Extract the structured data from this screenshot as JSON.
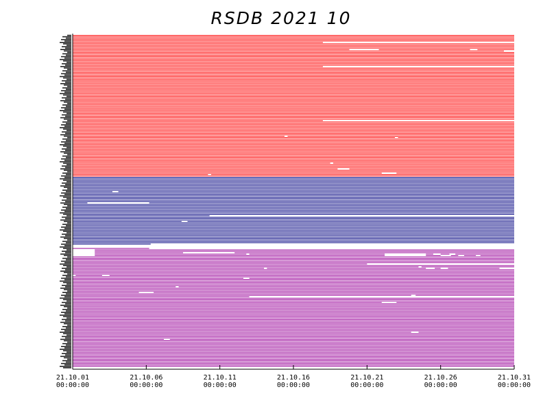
{
  "chart_data": {
    "type": "availability_timeline",
    "title": "RSDB  2021  10",
    "x_start": "21.10.01 00:00:00",
    "x_end": "21.10.31 00:00:00",
    "x_ticks": [
      {
        "date": "21.10.01",
        "time": "00:00:00",
        "day": 1
      },
      {
        "date": "21.10.06",
        "time": "00:00:00",
        "day": 6
      },
      {
        "date": "21.10.11",
        "time": "00:00:00",
        "day": 11
      },
      {
        "date": "21.10.16",
        "time": "00:00:00",
        "day": 16
      },
      {
        "date": "21.10.21",
        "time": "00:00:00",
        "day": 21
      },
      {
        "date": "21.10.26",
        "time": "00:00:00",
        "day": 26
      },
      {
        "date": "21.10.31",
        "time": "00:00:00",
        "day": 31
      }
    ],
    "groups": [
      {
        "color": "#ff0000",
        "station_count": 100,
        "gaps": [
          {
            "row": 5,
            "from": 18.0,
            "to": 31.0
          },
          {
            "row": 10,
            "from": 19.8,
            "to": 21.8
          },
          {
            "row": 10,
            "from": 28.0,
            "to": 28.5
          },
          {
            "row": 11,
            "from": 30.3,
            "to": 31.0
          },
          {
            "row": 22,
            "from": 18.0,
            "to": 31.0
          },
          {
            "row": 60,
            "from": 18.0,
            "to": 31.0
          },
          {
            "row": 71,
            "from": 15.4,
            "to": 15.6
          },
          {
            "row": 72,
            "from": 22.9,
            "to": 23.1
          },
          {
            "row": 90,
            "from": 18.5,
            "to": 18.7
          },
          {
            "row": 94,
            "from": 19.0,
            "to": 19.8
          },
          {
            "row": 97,
            "from": 22.0,
            "to": 23.0
          },
          {
            "row": 98,
            "from": 10.2,
            "to": 10.4
          }
        ]
      },
      {
        "color": "#000080",
        "station_count": 50,
        "gaps": [
          {
            "row": 10,
            "from": 3.7,
            "to": 4.1
          },
          {
            "row": 18,
            "from": 2.0,
            "to": 6.2
          },
          {
            "row": 27,
            "from": 10.3,
            "to": 31.0
          },
          {
            "row": 31,
            "from": 8.4,
            "to": 8.8
          },
          {
            "row": 47,
            "from": 6.3,
            "to": 31.0
          },
          {
            "row": 48,
            "from": 1.0,
            "to": 31.0
          },
          {
            "row": 49,
            "from": 1.0,
            "to": 31.0
          }
        ]
      },
      {
        "color": "#990099",
        "station_count": 85,
        "gaps": [
          {
            "row": 0,
            "from": 6.2,
            "to": 31.0
          },
          {
            "row": 1,
            "from": 1.0,
            "to": 2.5
          },
          {
            "row": 2,
            "from": 1.0,
            "to": 2.5
          },
          {
            "row": 3,
            "from": 1.0,
            "to": 2.5
          },
          {
            "row": 3,
            "from": 8.5,
            "to": 12.0
          },
          {
            "row": 4,
            "from": 1.0,
            "to": 2.5
          },
          {
            "row": 4,
            "from": 12.8,
            "to": 13.0
          },
          {
            "row": 4,
            "from": 22.2,
            "to": 25.0
          },
          {
            "row": 4,
            "from": 25.5,
            "to": 26.0
          },
          {
            "row": 4,
            "from": 26.6,
            "to": 27.0
          },
          {
            "row": 5,
            "from": 1.0,
            "to": 2.5
          },
          {
            "row": 5,
            "from": 22.2,
            "to": 25.0
          },
          {
            "row": 5,
            "from": 26.0,
            "to": 26.7
          },
          {
            "row": 5,
            "from": 27.2,
            "to": 27.6
          },
          {
            "row": 5,
            "from": 28.4,
            "to": 28.7
          },
          {
            "row": 11,
            "from": 21.0,
            "to": 31.0
          },
          {
            "row": 13,
            "from": 24.5,
            "to": 24.7
          },
          {
            "row": 14,
            "from": 14.0,
            "to": 14.2
          },
          {
            "row": 14,
            "from": 25.0,
            "to": 25.6
          },
          {
            "row": 14,
            "from": 26.0,
            "to": 26.5
          },
          {
            "row": 14,
            "from": 30.0,
            "to": 31.0
          },
          {
            "row": 19,
            "from": 1.0,
            "to": 1.2
          },
          {
            "row": 19,
            "from": 3.0,
            "to": 3.5
          },
          {
            "row": 21,
            "from": 12.6,
            "to": 13.0
          },
          {
            "row": 27,
            "from": 8.0,
            "to": 8.2
          },
          {
            "row": 31,
            "from": 5.5,
            "to": 6.5
          },
          {
            "row": 33,
            "from": 24.0,
            "to": 24.3
          },
          {
            "row": 34,
            "from": 13.0,
            "to": 31.0
          },
          {
            "row": 38,
            "from": 22.0,
            "to": 23.0
          },
          {
            "row": 59,
            "from": 24.0,
            "to": 24.5
          },
          {
            "row": 64,
            "from": 7.2,
            "to": 7.6
          },
          {
            "row": 84,
            "from": 1.0,
            "to": 31.0
          }
        ]
      }
    ]
  }
}
